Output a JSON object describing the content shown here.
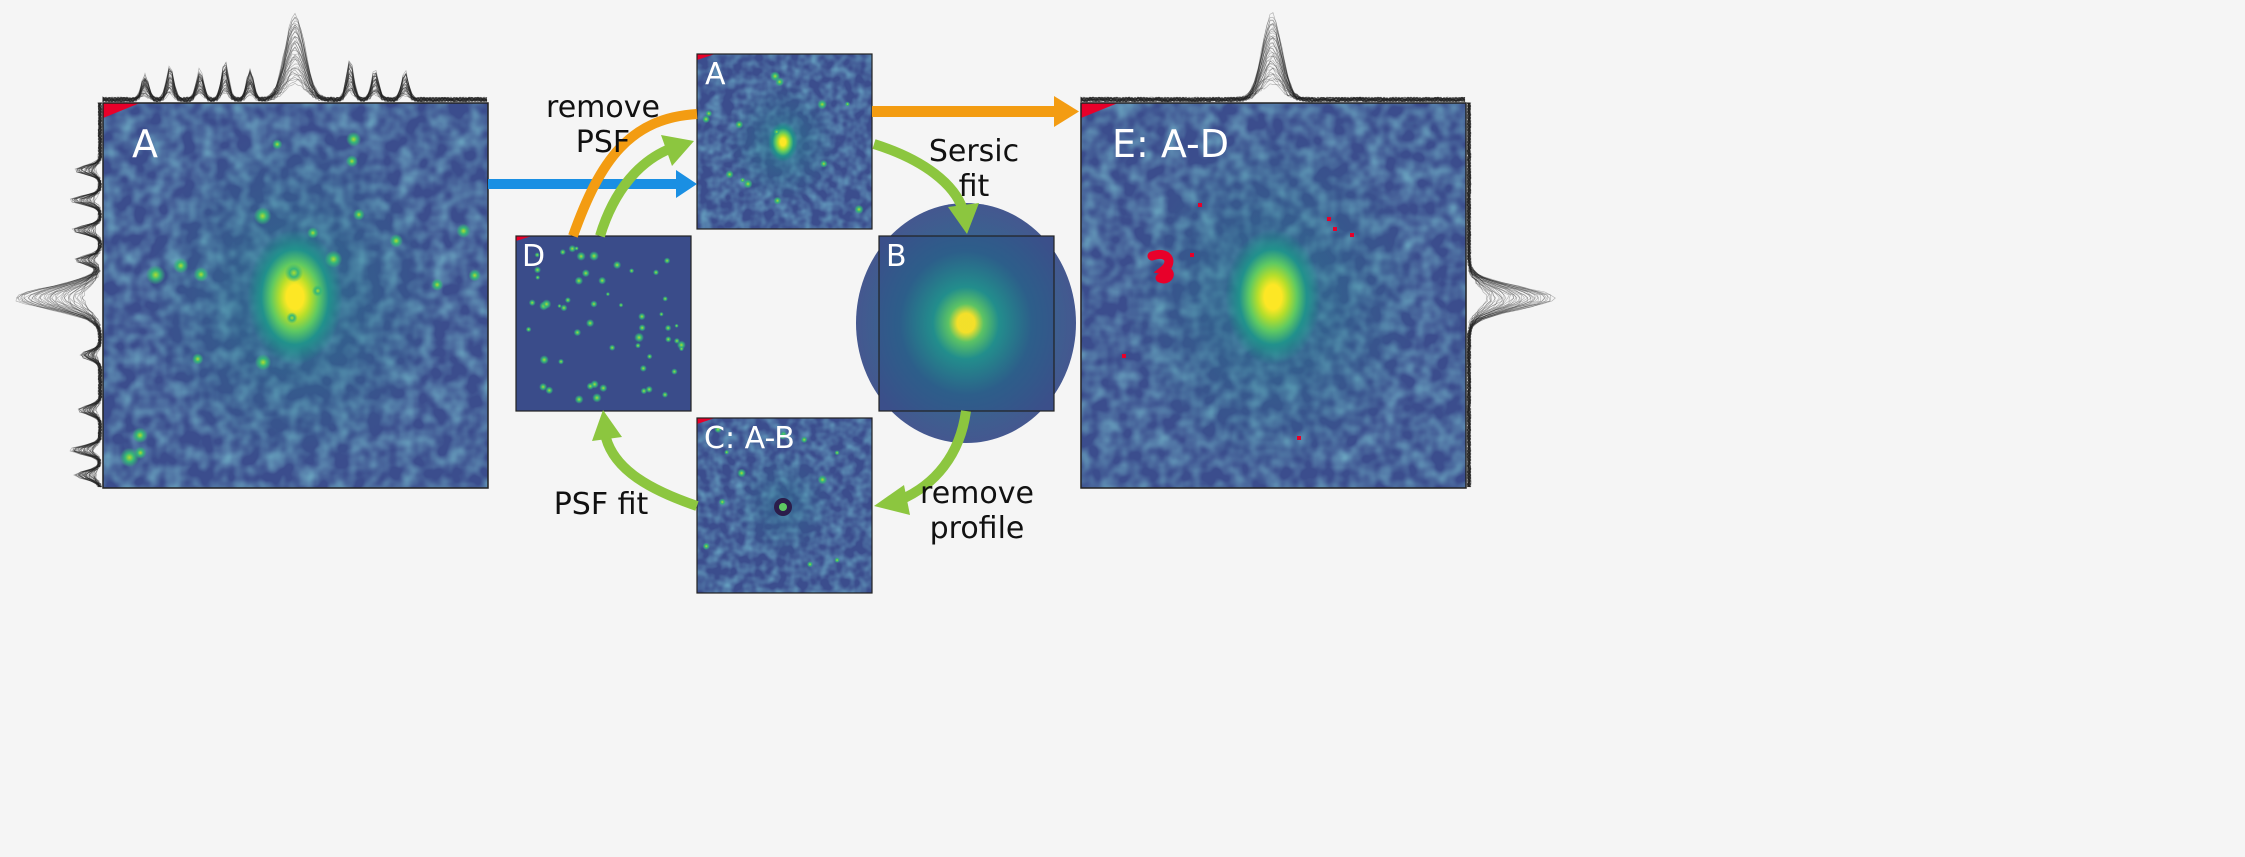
{
  "panels": {
    "left": {
      "label": "A"
    },
    "top": {
      "label": "A"
    },
    "right_small": {
      "label": "B"
    },
    "bottom": {
      "label": "C: A-B"
    },
    "left_small": {
      "label": "D"
    },
    "result": {
      "label": "E: A-D"
    }
  },
  "steps": {
    "remove_psf": [
      "remove",
      "PSF"
    ],
    "sersic_fit": [
      "Sersic",
      "fit"
    ],
    "remove_profile": [
      "remove",
      "profile"
    ],
    "psf_fit": "PSF fit"
  },
  "colors": {
    "background": "#f5f5f5",
    "image_base": "#3a4c8c",
    "galaxy_core": "#fde725",
    "galaxy_mid": "#5ec962",
    "star": "#35b779",
    "mask_red": "#e8002a",
    "arrow_orange": "#f39c12",
    "arrow_blue": "#1a8fe3",
    "arrow_green": "#8cc63f",
    "label_white": "#ffffff",
    "label_black": "#111111",
    "profile_line": "#222222"
  }
}
